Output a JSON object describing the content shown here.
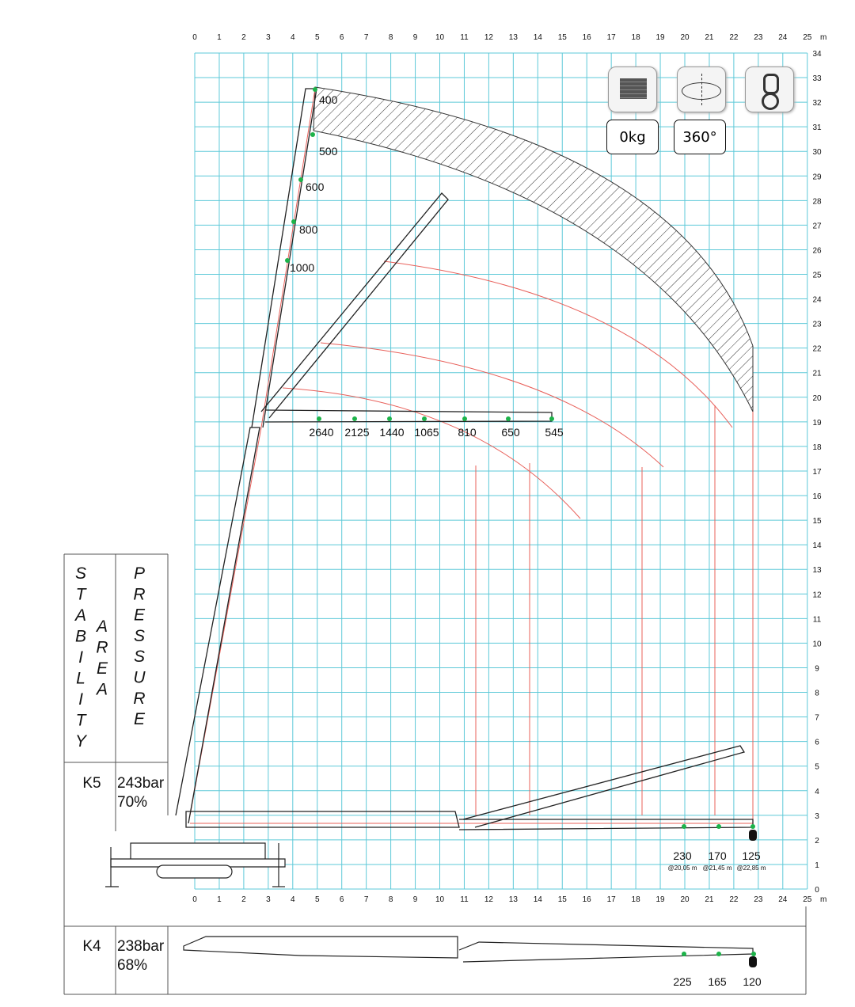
{
  "axes": {
    "x_ticks": [
      "0",
      "1",
      "2",
      "3",
      "4",
      "5",
      "6",
      "7",
      "8",
      "9",
      "10",
      "11",
      "12",
      "13",
      "14",
      "15",
      "16",
      "17",
      "18",
      "19",
      "20",
      "21",
      "22",
      "23",
      "24",
      "25"
    ],
    "x_unit": "m",
    "y_ticks": [
      "0",
      "1",
      "2",
      "3",
      "4",
      "5",
      "6",
      "7",
      "8",
      "9",
      "10",
      "11",
      "12",
      "13",
      "14",
      "15",
      "16",
      "17",
      "18",
      "19",
      "20",
      "21",
      "22",
      "23",
      "24",
      "25",
      "26",
      "27",
      "28",
      "29",
      "30",
      "31",
      "32",
      "33",
      "34"
    ],
    "grid_color": "#5ec9d8"
  },
  "icons": {
    "load": {
      "icon": "load-weight-icon",
      "value": "0kg"
    },
    "rotation": {
      "icon": "rotation-360-icon",
      "value": "360°"
    },
    "hook": {
      "icon": "hook-icon"
    }
  },
  "vertical_boom_loads": [
    "400",
    "500",
    "600",
    "800",
    "1000"
  ],
  "horizontal_boom_loads": [
    "2640",
    "2125",
    "1440",
    "1065",
    "810",
    "650",
    "545"
  ],
  "lowered_boom_loads": [
    {
      "load": "230",
      "reach": "@20,05 m"
    },
    {
      "load": "170",
      "reach": "@21,45 m"
    },
    {
      "load": "125",
      "reach": "@22,85 m"
    }
  ],
  "table": {
    "col1_header": [
      "S",
      "T",
      "A",
      "B",
      "I",
      "L",
      "I",
      "T",
      "Y"
    ],
    "col1_header2": [
      "A",
      "R",
      "E",
      "A"
    ],
    "col2_header": [
      "P",
      "R",
      "E",
      "S",
      "S",
      "U",
      "R",
      "E"
    ],
    "rows": [
      {
        "config": "K5",
        "pressure": "243bar",
        "percent": "70%"
      },
      {
        "config": "K4",
        "pressure": "238bar",
        "percent": "68%"
      }
    ]
  },
  "k4_loads": [
    "225",
    "165",
    "120"
  ],
  "colors": {
    "grid": "#5ec9d8",
    "radius_lines": "#e8605a",
    "load_points": "#1db34a"
  }
}
